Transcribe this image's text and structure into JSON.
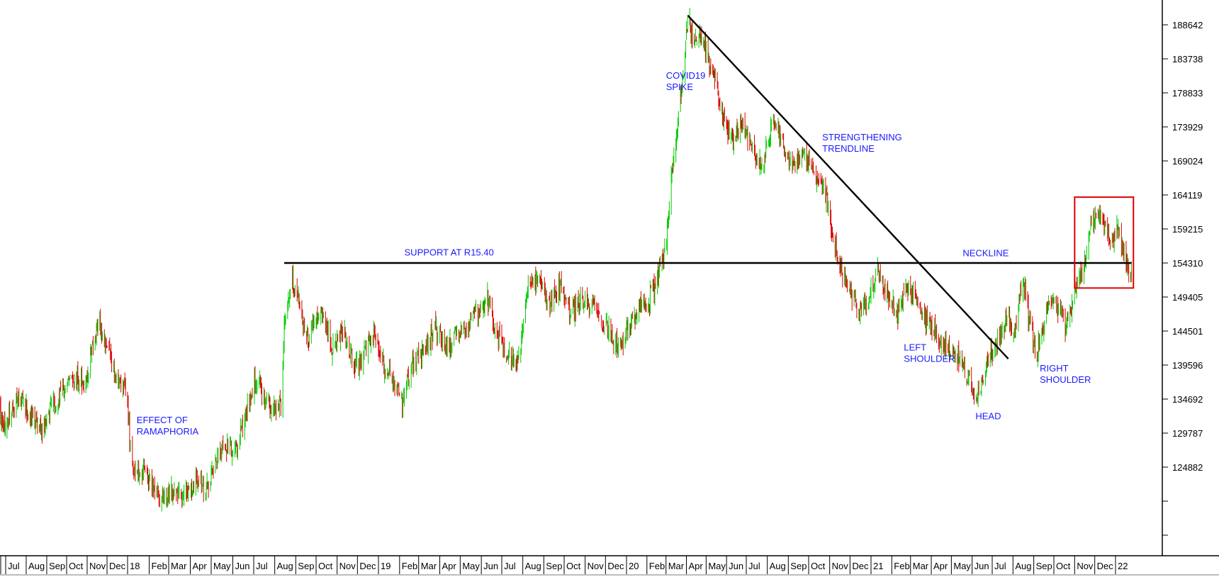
{
  "chart_data": {
    "type": "candlestick",
    "title": "",
    "xlabel": "",
    "ylabel": "",
    "ylim": [
      119000,
      193000
    ],
    "x_range": [
      "2017-06-01",
      "2022-01-25"
    ],
    "grid": false,
    "colors": {
      "up": "#00cc00",
      "down": "#dd0000",
      "trendline": "#000000",
      "highlight_box": "#e00000",
      "annotation_text": "#1a1aff"
    },
    "y_ticks": [
      188642,
      183738,
      178833,
      173929,
      169024,
      164119,
      159215,
      154310,
      149405,
      144501,
      139596,
      134692,
      129787,
      124882
    ],
    "x_ticks": [
      {
        "label": "Jul",
        "date": "2017-07-01"
      },
      {
        "label": "Aug",
        "date": "2017-08-01"
      },
      {
        "label": "Sep",
        "date": "2017-09-01"
      },
      {
        "label": "Oct",
        "date": "2017-10-01"
      },
      {
        "label": "Nov",
        "date": "2017-11-01"
      },
      {
        "label": "Dec",
        "date": "2017-12-01"
      },
      {
        "label": "18",
        "date": "2018-01-01"
      },
      {
        "label": "Feb",
        "date": "2018-02-01"
      },
      {
        "label": "Mar",
        "date": "2018-03-01"
      },
      {
        "label": "Apr",
        "date": "2018-04-01"
      },
      {
        "label": "May",
        "date": "2018-05-01"
      },
      {
        "label": "Jun",
        "date": "2018-06-01"
      },
      {
        "label": "Jul",
        "date": "2018-07-01"
      },
      {
        "label": "Aug",
        "date": "2018-08-01"
      },
      {
        "label": "Sep",
        "date": "2018-09-01"
      },
      {
        "label": "Oct",
        "date": "2018-10-01"
      },
      {
        "label": "Nov",
        "date": "2018-11-01"
      },
      {
        "label": "Dec",
        "date": "2018-12-01"
      },
      {
        "label": "19",
        "date": "2019-01-01"
      },
      {
        "label": "Feb",
        "date": "2019-02-01"
      },
      {
        "label": "Mar",
        "date": "2019-03-01"
      },
      {
        "label": "Apr",
        "date": "2019-04-01"
      },
      {
        "label": "May",
        "date": "2019-05-01"
      },
      {
        "label": "Jun",
        "date": "2019-06-01"
      },
      {
        "label": "Jul",
        "date": "2019-07-01"
      },
      {
        "label": "Aug",
        "date": "2019-08-01"
      },
      {
        "label": "Sep",
        "date": "2019-09-01"
      },
      {
        "label": "Oct",
        "date": "2019-10-01"
      },
      {
        "label": "Nov",
        "date": "2019-11-01"
      },
      {
        "label": "Dec",
        "date": "2019-12-01"
      },
      {
        "label": "20",
        "date": "2020-01-01"
      },
      {
        "label": "Feb",
        "date": "2020-02-01"
      },
      {
        "label": "Mar",
        "date": "2020-03-01"
      },
      {
        "label": "Apr",
        "date": "2020-04-01"
      },
      {
        "label": "May",
        "date": "2020-05-01"
      },
      {
        "label": "Jun",
        "date": "2020-06-01"
      },
      {
        "label": "Jul",
        "date": "2020-07-01"
      },
      {
        "label": "Aug",
        "date": "2020-08-01"
      },
      {
        "label": "Sep",
        "date": "2020-09-01"
      },
      {
        "label": "Oct",
        "date": "2020-10-01"
      },
      {
        "label": "Nov",
        "date": "2020-11-01"
      },
      {
        "label": "Dec",
        "date": "2020-12-01"
      },
      {
        "label": "21",
        "date": "2021-01-01"
      },
      {
        "label": "Feb",
        "date": "2021-02-01"
      },
      {
        "label": "Mar",
        "date": "2021-03-01"
      },
      {
        "label": "Apr",
        "date": "2021-04-01"
      },
      {
        "label": "May",
        "date": "2021-05-01"
      },
      {
        "label": "Jun",
        "date": "2021-06-01"
      },
      {
        "label": "Jul",
        "date": "2021-07-01"
      },
      {
        "label": "Aug",
        "date": "2021-08-01"
      },
      {
        "label": "Sep",
        "date": "2021-09-01"
      },
      {
        "label": "Oct",
        "date": "2021-10-01"
      },
      {
        "label": "Nov",
        "date": "2021-11-01"
      },
      {
        "label": "Dec",
        "date": "2021-12-01"
      },
      {
        "label": "22",
        "date": "2022-01-01"
      }
    ],
    "price_path": [
      [
        "2017-06-01",
        134000
      ],
      [
        "2017-06-15",
        132000
      ],
      [
        "2017-07-01",
        131000
      ],
      [
        "2017-07-20",
        135000
      ],
      [
        "2017-08-10",
        132000
      ],
      [
        "2017-08-25",
        130000
      ],
      [
        "2017-09-10",
        134000
      ],
      [
        "2017-09-25",
        136000
      ],
      [
        "2017-10-15",
        138000
      ],
      [
        "2017-10-30",
        137000
      ],
      [
        "2017-11-10",
        143000
      ],
      [
        "2017-11-20",
        146000
      ],
      [
        "2017-12-01",
        142000
      ],
      [
        "2017-12-10",
        139000
      ],
      [
        "2017-12-20",
        137000
      ],
      [
        "2017-12-31",
        136000
      ],
      [
        "2018-01-05",
        127000
      ],
      [
        "2018-01-10",
        125000
      ],
      [
        "2018-01-25",
        124000
      ],
      [
        "2018-02-10",
        121000
      ],
      [
        "2018-02-25",
        120000
      ],
      [
        "2018-03-10",
        122000
      ],
      [
        "2018-03-25",
        121000
      ],
      [
        "2018-04-10",
        123000
      ],
      [
        "2018-04-25",
        122000
      ],
      [
        "2018-05-10",
        126000
      ],
      [
        "2018-05-20",
        128000
      ],
      [
        "2018-06-05",
        127000
      ],
      [
        "2018-06-20",
        133000
      ],
      [
        "2018-07-05",
        138000
      ],
      [
        "2018-07-20",
        134000
      ],
      [
        "2018-08-01",
        133000
      ],
      [
        "2018-08-10",
        134000
      ],
      [
        "2018-08-15",
        145000
      ],
      [
        "2018-08-25",
        152000
      ],
      [
        "2018-09-05",
        150000
      ],
      [
        "2018-09-15",
        143000
      ],
      [
        "2018-09-25",
        145000
      ],
      [
        "2018-10-10",
        147000
      ],
      [
        "2018-10-25",
        142000
      ],
      [
        "2018-11-10",
        145000
      ],
      [
        "2018-11-25",
        139000
      ],
      [
        "2018-12-10",
        141000
      ],
      [
        "2018-12-25",
        144000
      ],
      [
        "2019-01-10",
        139000
      ],
      [
        "2019-01-25",
        137000
      ],
      [
        "2019-02-05",
        134000
      ],
      [
        "2019-02-20",
        140000
      ],
      [
        "2019-03-10",
        142000
      ],
      [
        "2019-03-25",
        145000
      ],
      [
        "2019-04-10",
        142000
      ],
      [
        "2019-04-25",
        144000
      ],
      [
        "2019-05-10",
        145000
      ],
      [
        "2019-05-25",
        147000
      ],
      [
        "2019-06-10",
        149000
      ],
      [
        "2019-06-25",
        144000
      ],
      [
        "2019-07-10",
        141000
      ],
      [
        "2019-07-25",
        140000
      ],
      [
        "2019-08-10",
        151000
      ],
      [
        "2019-08-25",
        152000
      ],
      [
        "2019-09-10",
        148000
      ],
      [
        "2019-09-25",
        151000
      ],
      [
        "2019-10-10",
        147000
      ],
      [
        "2019-10-25",
        149000
      ],
      [
        "2019-11-10",
        148000
      ],
      [
        "2019-11-25",
        146000
      ],
      [
        "2019-12-10",
        144000
      ],
      [
        "2019-12-20",
        142000
      ],
      [
        "2020-01-05",
        145000
      ],
      [
        "2020-01-20",
        148000
      ],
      [
        "2020-02-05",
        149000
      ],
      [
        "2020-02-20",
        153000
      ],
      [
        "2020-03-01",
        157000
      ],
      [
        "2020-03-10",
        167000
      ],
      [
        "2020-03-20",
        176000
      ],
      [
        "2020-03-28",
        183000
      ],
      [
        "2020-04-03",
        190000
      ],
      [
        "2020-04-12",
        186000
      ],
      [
        "2020-04-25",
        187000
      ],
      [
        "2020-05-10",
        182000
      ],
      [
        "2020-05-25",
        176000
      ],
      [
        "2020-06-10",
        172000
      ],
      [
        "2020-06-25",
        174000
      ],
      [
        "2020-07-10",
        171000
      ],
      [
        "2020-07-25",
        168000
      ],
      [
        "2020-08-10",
        175000
      ],
      [
        "2020-08-25",
        171000
      ],
      [
        "2020-09-10",
        168000
      ],
      [
        "2020-09-25",
        170000
      ],
      [
        "2020-10-10",
        167000
      ],
      [
        "2020-10-25",
        165000
      ],
      [
        "2020-11-05",
        158000
      ],
      [
        "2020-11-15",
        154000
      ],
      [
        "2020-11-30",
        151000
      ],
      [
        "2020-12-15",
        147000
      ],
      [
        "2020-12-31",
        150000
      ],
      [
        "2021-01-10",
        153000
      ],
      [
        "2021-01-25",
        150000
      ],
      [
        "2021-02-10",
        147000
      ],
      [
        "2021-02-25",
        151000
      ],
      [
        "2021-03-10",
        149000
      ],
      [
        "2021-03-25",
        146000
      ],
      [
        "2021-04-10",
        144000
      ],
      [
        "2021-04-25",
        142000
      ],
      [
        "2021-05-10",
        141000
      ],
      [
        "2021-05-25",
        138000
      ],
      [
        "2021-06-05",
        135000
      ],
      [
        "2021-06-15",
        137000
      ],
      [
        "2021-06-25",
        141000
      ],
      [
        "2021-07-10",
        143000
      ],
      [
        "2021-07-25",
        146000
      ],
      [
        "2021-08-05",
        144000
      ],
      [
        "2021-08-15",
        153000
      ],
      [
        "2021-08-25",
        146000
      ],
      [
        "2021-09-05",
        141000
      ],
      [
        "2021-09-15",
        145000
      ],
      [
        "2021-09-30",
        150000
      ],
      [
        "2021-10-10",
        147000
      ],
      [
        "2021-10-20",
        145000
      ],
      [
        "2021-11-01",
        150000
      ],
      [
        "2021-11-15",
        154000
      ],
      [
        "2021-11-25",
        159000
      ],
      [
        "2021-12-05",
        162000
      ],
      [
        "2021-12-15",
        159000
      ],
      [
        "2021-12-25",
        157000
      ],
      [
        "2022-01-05",
        160000
      ],
      [
        "2022-01-15",
        155000
      ],
      [
        "2022-01-25",
        153000
      ]
    ],
    "lines": [
      {
        "name": "support",
        "from": [
          "2018-08-15",
          154310
        ],
        "to": [
          "2022-01-25",
          154310
        ]
      },
      {
        "name": "trendline",
        "from": [
          "2020-04-03",
          190000
        ],
        "to": [
          "2021-07-25",
          140500
        ]
      }
    ],
    "highlight_box": {
      "from": [
        "2021-11-01",
        163800
      ],
      "to": [
        "2022-01-28",
        150700
      ]
    },
    "annotations": [
      {
        "id": "effect",
        "lines": [
          "EFFECT OF",
          "RAMAPHORIA"
        ],
        "date": "2018-01-14",
        "value": 131200
      },
      {
        "id": "covid",
        "lines": [
          "COVID19",
          "SPIKE"
        ],
        "date": "2020-03-01",
        "value": 180900
      },
      {
        "id": "strength",
        "lines": [
          "STRENGTHENING",
          "TRENDLINE"
        ],
        "date": "2020-10-21",
        "value": 172000
      },
      {
        "id": "support",
        "lines": [
          "SUPPORT AT R15.40"
        ],
        "date": "2019-02-08",
        "value": 155400
      },
      {
        "id": "neckline",
        "lines": [
          "NECKLINE"
        ],
        "date": "2021-05-18",
        "value": 155300
      },
      {
        "id": "left",
        "lines": [
          "LEFT",
          "SHOULDER"
        ],
        "date": "2021-02-19",
        "value": 141700
      },
      {
        "id": "head",
        "lines": [
          "HEAD"
        ],
        "date": "2021-06-06",
        "value": 131800
      },
      {
        "id": "right",
        "lines": [
          "RIGHT",
          "SHOULDER"
        ],
        "date": "2021-09-10",
        "value": 138700
      }
    ]
  }
}
